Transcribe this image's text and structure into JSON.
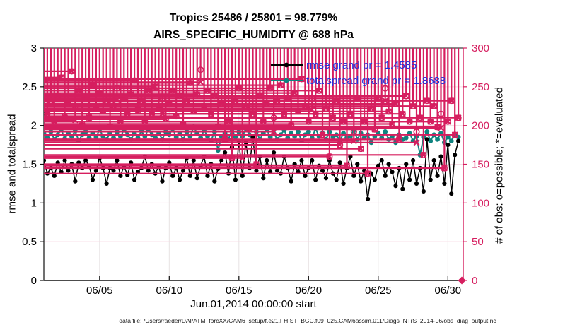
{
  "header": {
    "title_line1": "Tropics 25486 / 25801 = 98.779%",
    "title_line2": "AIRS_SPECIFIC_HUMIDITY @ 688 hPa"
  },
  "caption": "data file: /Users/raeder/DAI/ATM_forcXX/CAM6_setup/f.e21.FHIST_BGC.f09_025.CAM6assim.011/Diags_NTrS_2014-06/obs_diag_output.nc",
  "colors": {
    "rmse": "#000000",
    "totalspread": "#0e837f",
    "obs": "#d61e5f",
    "legend_text": "#2233dd",
    "grid_h": "#f6d9e2",
    "grid_v": "#e7e2e3",
    "axis": "#111111"
  },
  "legend": {
    "items": [
      {
        "label": "rmse grand pr = 1.4585"
      },
      {
        "label": "totalspread grand pr = 1.8688"
      }
    ]
  },
  "chart_data": {
    "type": "line",
    "title": "Tropics 25486 / 25801 = 98.779%",
    "subtitle": "AIRS_SPECIFIC_HUMIDITY @ 688 hPa",
    "xlabel": "Jun.01,2014 00:00:00 start",
    "ylabel_left": "rmse and totalspread",
    "ylabel_right": "# of obs: o=possible; *=evaluated",
    "ylim_left": [
      0,
      3
    ],
    "ylim_right": [
      0,
      300
    ],
    "yticks_left": [
      0,
      0.5,
      1,
      1.5,
      2,
      2.5,
      3
    ],
    "ytick_labels_left": [
      "0",
      "0.5",
      "1",
      "1.5",
      "2",
      "2.5",
      "3"
    ],
    "yticks_right": [
      0,
      50,
      100,
      150,
      200,
      250,
      300
    ],
    "ytick_labels_right": [
      "0",
      "50",
      "100",
      "150",
      "200",
      "250",
      "300"
    ],
    "x_start_day": 1,
    "x_end_day": 31.1,
    "time_step_days": 0.25,
    "xtick_days": [
      5,
      10,
      15,
      20,
      25,
      30
    ],
    "xtick_labels": [
      "06/05",
      "06/10",
      "06/15",
      "06/20",
      "06/25",
      "06/30"
    ],
    "grid": true,
    "legend_position": "top-right-inside",
    "series": [
      {
        "name": "rmse grand pr = 1.4585",
        "axis": "left",
        "marker": "dot",
        "values": [
          1.55,
          1.38,
          1.45,
          1.35,
          1.52,
          1.4,
          1.55,
          1.42,
          1.5,
          1.28,
          1.52,
          1.45,
          1.55,
          1.48,
          1.3,
          1.42,
          1.58,
          1.45,
          1.25,
          1.45,
          1.42,
          1.55,
          1.35,
          1.48,
          1.36,
          1.52,
          1.3,
          1.4,
          1.45,
          1.6,
          1.42,
          1.5,
          1.38,
          1.48,
          1.28,
          1.45,
          1.52,
          1.35,
          1.45,
          1.3,
          1.42,
          1.58,
          1.35,
          1.55,
          1.32,
          1.48,
          1.6,
          1.35,
          1.5,
          1.28,
          1.44,
          1.55,
          1.65,
          1.38,
          1.72,
          1.3,
          1.8,
          1.35,
          1.78,
          1.45,
          1.85,
          1.42,
          1.6,
          1.32,
          1.55,
          1.4,
          1.65,
          1.42,
          1.38,
          1.6,
          1.45,
          1.28,
          1.5,
          1.4,
          1.55,
          1.35,
          1.45,
          1.55,
          1.3,
          1.48,
          1.42,
          1.32,
          1.55,
          1.38,
          1.3,
          1.52,
          1.25,
          1.45,
          1.6,
          1.35,
          1.5,
          1.28,
          1.42,
          1.05,
          1.38,
          1.3,
          1.48,
          1.55,
          1.35,
          1.5,
          1.4,
          1.22,
          1.45,
          1.18,
          1.5,
          1.3,
          1.55,
          1.25,
          1.45,
          1.15,
          1.82,
          1.3,
          1.55,
          1.35,
          1.6,
          1.25,
          1.75,
          1.12,
          1.62,
          1.8
        ]
      },
      {
        "name": "totalspread grand pr = 1.8688",
        "axis": "left",
        "marker": "dot",
        "values": [
          1.9,
          1.84,
          1.92,
          1.82,
          1.88,
          1.95,
          1.83,
          1.9,
          1.86,
          1.93,
          1.8,
          1.88,
          1.92,
          1.84,
          1.9,
          1.85,
          1.95,
          1.86,
          1.82,
          1.9,
          1.84,
          1.92,
          1.86,
          1.94,
          1.88,
          1.82,
          1.9,
          1.84,
          1.93,
          1.86,
          1.95,
          1.88,
          1.84,
          1.9,
          1.82,
          1.92,
          1.88,
          1.96,
          1.85,
          1.9,
          1.82,
          1.92,
          1.86,
          1.98,
          1.9,
          1.84,
          1.94,
          1.86,
          1.8,
          1.92,
          1.68,
          1.86,
          1.9,
          1.82,
          1.95,
          1.85,
          1.92,
          1.86,
          1.96,
          1.88,
          1.84,
          1.92,
          1.82,
          1.9,
          1.95,
          1.85,
          1.9,
          1.82,
          1.88,
          1.94,
          1.84,
          1.9,
          1.86,
          1.92,
          1.8,
          1.88,
          1.92,
          1.84,
          1.96,
          1.86,
          1.9,
          1.82,
          1.92,
          1.85,
          1.88,
          1.8,
          1.9,
          1.84,
          1.86,
          1.94,
          1.82,
          1.9,
          1.84,
          1.88,
          1.78,
          1.86,
          1.9,
          1.84,
          1.92,
          1.82,
          1.86,
          1.78,
          1.88,
          1.82,
          1.84,
          1.9,
          1.8,
          1.86,
          1.62,
          1.85,
          1.92,
          1.8,
          1.88,
          1.82,
          1.9,
          1.78,
          1.85,
          1.8,
          1.88,
          1.85
        ]
      },
      {
        "name": "possible",
        "axis": "right",
        "marker": "o",
        "values": [
          258,
          215,
          232,
          205,
          238,
          262,
          210,
          228,
          270,
          225,
          245,
          200,
          235,
          210,
          252,
          222,
          242,
          218,
          232,
          198,
          225,
          248,
          205,
          235,
          215,
          240,
          258,
          220,
          232,
          205,
          245,
          215,
          250,
          222,
          235,
          208,
          228,
          245,
          212,
          238,
          202,
          232,
          255,
          218,
          240,
          272,
          225,
          245,
          215,
          238,
          198,
          228,
          182,
          205,
          158,
          232,
          248,
          172,
          225,
          195,
          215,
          150,
          238,
          205,
          228,
          248,
          210,
          232,
          252,
          215,
          235,
          200,
          242,
          218,
          260,
          225,
          205,
          235,
          215,
          245,
          188,
          222,
          160,
          210,
          232,
          175,
          205,
          148,
          215,
          192,
          235,
          170,
          205,
          138,
          222,
          195,
          235,
          210,
          248,
          218,
          202,
          228,
          182,
          215,
          238,
          205,
          225,
          192,
          210,
          162,
          232,
          205,
          225,
          198,
          215,
          145,
          205,
          232,
          188,
          210
        ]
      },
      {
        "name": "evaluated",
        "axis": "right",
        "marker": "*",
        "values": [
          258,
          215,
          232,
          205,
          238,
          262,
          210,
          228,
          270,
          207,
          245,
          200,
          235,
          210,
          252,
          222,
          242,
          218,
          232,
          198,
          225,
          233,
          205,
          235,
          215,
          240,
          258,
          220,
          232,
          205,
          245,
          215,
          250,
          222,
          215,
          208,
          228,
          245,
          212,
          238,
          202,
          232,
          255,
          218,
          240,
          256,
          225,
          245,
          215,
          238,
          198,
          228,
          182,
          205,
          158,
          232,
          248,
          158,
          225,
          195,
          215,
          150,
          238,
          205,
          228,
          248,
          192,
          232,
          252,
          215,
          235,
          200,
          242,
          218,
          260,
          225,
          205,
          220,
          215,
          245,
          188,
          222,
          160,
          210,
          232,
          175,
          205,
          148,
          215,
          180,
          235,
          170,
          205,
          138,
          222,
          195,
          235,
          210,
          232,
          218,
          202,
          228,
          182,
          215,
          238,
          205,
          225,
          178,
          210,
          162,
          232,
          205,
          225,
          198,
          197,
          145,
          205,
          232,
          188,
          210
        ]
      }
    ],
    "final_point": {
      "day": 31.0,
      "value": 0,
      "axis": "right",
      "marker": "diamond"
    }
  }
}
